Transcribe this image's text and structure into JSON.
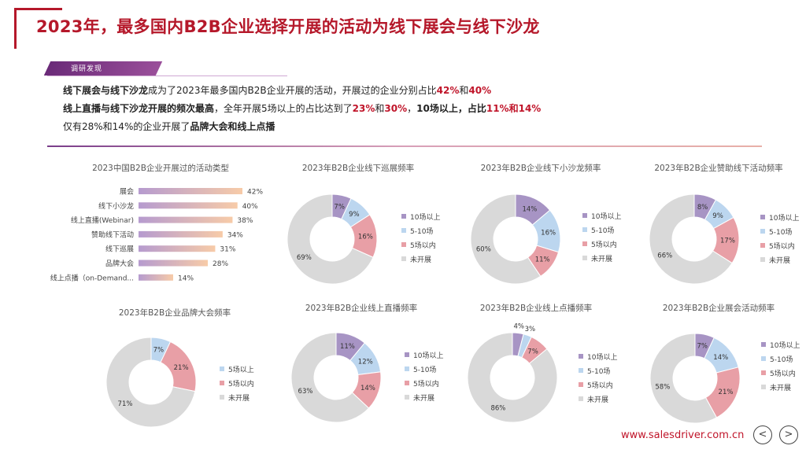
{
  "title": "2023年，最多国内B2B企业选择开展的活动为线下展会与线下沙龙",
  "tag": "调研发现",
  "summary": {
    "line1": [
      {
        "t": "线下展会与线下沙龙",
        "s": "b"
      },
      {
        "t": "成为了2023年最多国内B2B企业开展的活动，开展过的企业分别占比",
        "s": ""
      },
      {
        "t": "42%",
        "s": "hl"
      },
      {
        "t": "和",
        "s": ""
      },
      {
        "t": "40%",
        "s": "hl"
      }
    ],
    "line2": [
      {
        "t": "线上直播与线下沙龙开展的频次最高",
        "s": "b"
      },
      {
        "t": "，全年开展5场以上的占比达到了",
        "s": ""
      },
      {
        "t": "23%",
        "s": "hl"
      },
      {
        "t": "和",
        "s": ""
      },
      {
        "t": "30%",
        "s": "hl"
      },
      {
        "t": "，",
        "s": ""
      },
      {
        "t": "10场以上，占比",
        "s": "b"
      },
      {
        "t": "11%",
        "s": "hl"
      },
      {
        "t": "和",
        "s": "hl"
      },
      {
        "t": "14%",
        "s": "hl"
      }
    ],
    "line3": [
      {
        "t": "仅有28%和14%的企业开展了",
        "s": ""
      },
      {
        "t": "品牌大会和线上点播",
        "s": "b"
      }
    ]
  },
  "footer": {
    "url": "www.salesdriver.com.cn",
    "prev": "<",
    "next": ">"
  },
  "colors": {
    "purple": "#a794c4",
    "blue": "#bcd6ef",
    "pink": "#e89fa6",
    "gray": "#d9d9d9",
    "bar_start": "#b69bcf",
    "bar_end": "#f7cba8",
    "title_red": "#b5182a"
  },
  "chart_data": [
    {
      "type": "bar",
      "orientation": "horizontal",
      "title": "2023中国B2B企业开展过的活动类型",
      "categories": [
        "展会",
        "线下小沙龙",
        "线上直播(Webinar)",
        "赞助线下活动",
        "线下巡展",
        "品牌大会",
        "线上点播（on-Demand..."
      ],
      "values": [
        42,
        40,
        38,
        34,
        31,
        28,
        14
      ],
      "labels": [
        "42%",
        "40%",
        "38%",
        "34%",
        "31%",
        "28%",
        "14%"
      ],
      "xlim": [
        0,
        42
      ]
    },
    {
      "type": "pie",
      "donut": true,
      "title": "2023年B2B企业线下巡展频率",
      "slices": [
        {
          "name": "10场以上",
          "value": 7,
          "label": "7%",
          "color": "purple"
        },
        {
          "name": "5-10场",
          "value": 9,
          "label": "9%",
          "color": "blue"
        },
        {
          "name": "5场以内",
          "value": 16,
          "label": "16%",
          "color": "pink"
        },
        {
          "name": "未开展",
          "value": 69,
          "label": "69%",
          "color": "gray"
        }
      ],
      "legend": "right"
    },
    {
      "type": "pie",
      "donut": true,
      "title": "2023年B2B企业线下小沙龙频率",
      "slices": [
        {
          "name": "10场以上",
          "value": 14,
          "label": "14%",
          "color": "purple"
        },
        {
          "name": "5-10场",
          "value": 16,
          "label": "16%",
          "color": "blue"
        },
        {
          "name": "5场以内",
          "value": 11,
          "label": "11%",
          "color": "pink"
        },
        {
          "name": "未开展",
          "value": 60,
          "label": "60%",
          "color": "gray"
        }
      ],
      "legend": "right"
    },
    {
      "type": "pie",
      "donut": true,
      "title": "2023年B2B企业赞助线下活动频率",
      "slices": [
        {
          "name": "10场以上",
          "value": 8,
          "label": "8%",
          "color": "purple"
        },
        {
          "name": "5-10场",
          "value": 9,
          "label": "9%",
          "color": "blue"
        },
        {
          "name": "5场以内",
          "value": 17,
          "label": "17%",
          "color": "pink"
        },
        {
          "name": "未开展",
          "value": 66,
          "label": "66%",
          "color": "gray"
        }
      ],
      "legend": "right"
    },
    {
      "type": "pie",
      "donut": true,
      "title": "2023年B2B企业品牌大会频率",
      "slices": [
        {
          "name": "5场以上",
          "value": 7,
          "label": "7%",
          "color": "blue"
        },
        {
          "name": "5场以内",
          "value": 21,
          "label": "21%",
          "color": "pink"
        },
        {
          "name": "未开展",
          "value": 71,
          "label": "71%",
          "color": "gray"
        }
      ],
      "legend": "right"
    },
    {
      "type": "pie",
      "donut": true,
      "title": "2023年B2B企业线上直播频率",
      "slices": [
        {
          "name": "10场以上",
          "value": 11,
          "label": "11%",
          "color": "purple"
        },
        {
          "name": "5-10场",
          "value": 12,
          "label": "12%",
          "color": "blue"
        },
        {
          "name": "5场以内",
          "value": 14,
          "label": "14%",
          "color": "pink"
        },
        {
          "name": "未开展",
          "value": 63,
          "label": "63%",
          "color": "gray"
        }
      ],
      "legend": "right"
    },
    {
      "type": "pie",
      "donut": true,
      "title": "2023年B2B企业线上点播频率",
      "slices": [
        {
          "name": "10场以上",
          "value": 4,
          "label": "4%",
          "color": "purple"
        },
        {
          "name": "5-10场",
          "value": 3,
          "label": "3%",
          "color": "blue"
        },
        {
          "name": "5场以内",
          "value": 7,
          "label": "7%",
          "color": "pink"
        },
        {
          "name": "未开展",
          "value": 86,
          "label": "86%",
          "color": "gray"
        }
      ],
      "legend": "right"
    },
    {
      "type": "pie",
      "donut": true,
      "title": "2023年B2B企业展会活动频率",
      "slices": [
        {
          "name": "10场以上",
          "value": 7,
          "label": "7%",
          "color": "purple"
        },
        {
          "name": "5-10场",
          "value": 14,
          "label": "14%",
          "color": "blue"
        },
        {
          "name": "5场以内",
          "value": 21,
          "label": "21%",
          "color": "pink"
        },
        {
          "name": "未开展",
          "value": 58,
          "label": "58%",
          "color": "gray"
        }
      ],
      "legend": "right"
    }
  ]
}
